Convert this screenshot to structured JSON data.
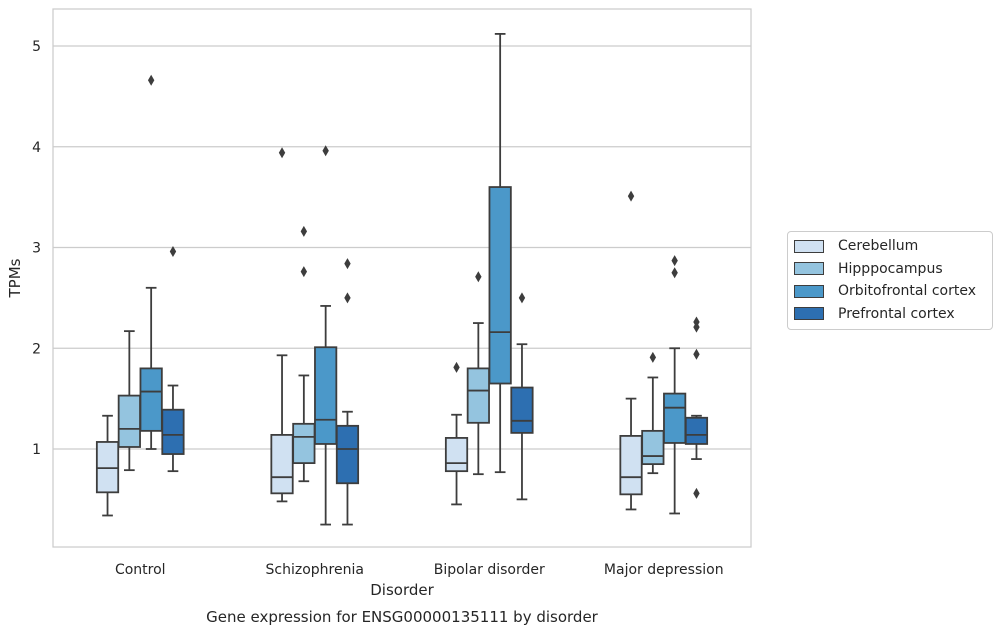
{
  "chart_data": {
    "type": "box",
    "title": "Gene expression for ENSG00000135111 by disorder",
    "xlabel": "Disorder",
    "ylabel": "TPMs",
    "ylim": [
      0,
      5.35
    ],
    "yticks": [
      1,
      2,
      3,
      4,
      5
    ],
    "grid": "horizontal",
    "legend_position": "right",
    "categories": [
      "Control",
      "Schizophrenia",
      "Bipolar disorder",
      "Major depression"
    ],
    "series": [
      {
        "name": "Cerebellum",
        "color": "#d0e1f2",
        "boxes": [
          {
            "whislo": 0.34,
            "q1": 0.57,
            "med": 0.81,
            "q3": 1.07,
            "whishi": 1.33,
            "fliers": []
          },
          {
            "whislo": 0.48,
            "q1": 0.56,
            "med": 0.72,
            "q3": 1.14,
            "whishi": 1.93,
            "fliers": [
              3.94
            ]
          },
          {
            "whislo": 0.45,
            "q1": 0.78,
            "med": 0.86,
            "q3": 1.11,
            "whishi": 1.34,
            "fliers": [
              1.81
            ]
          },
          {
            "whislo": 0.4,
            "q1": 0.55,
            "med": 0.72,
            "q3": 1.13,
            "whishi": 1.5,
            "fliers": [
              3.51
            ]
          }
        ]
      },
      {
        "name": "Hipppocampus",
        "color": "#94c4df",
        "boxes": [
          {
            "whislo": 0.79,
            "q1": 1.02,
            "med": 1.2,
            "q3": 1.53,
            "whishi": 2.17,
            "fliers": []
          },
          {
            "whislo": 0.68,
            "q1": 0.86,
            "med": 1.12,
            "q3": 1.25,
            "whishi": 1.73,
            "fliers": [
              3.16,
              2.76
            ]
          },
          {
            "whislo": 0.75,
            "q1": 1.26,
            "med": 1.58,
            "q3": 1.8,
            "whishi": 2.25,
            "fliers": [
              2.71
            ]
          },
          {
            "whislo": 0.76,
            "q1": 0.85,
            "med": 0.93,
            "q3": 1.18,
            "whishi": 1.71,
            "fliers": [
              1.91
            ]
          }
        ]
      },
      {
        "name": "Orbitofrontal cortex",
        "color": "#4b98c9",
        "boxes": [
          {
            "whislo": 1.0,
            "q1": 1.18,
            "med": 1.57,
            "q3": 1.8,
            "whishi": 2.6,
            "fliers": [
              4.66
            ]
          },
          {
            "whislo": 0.25,
            "q1": 1.05,
            "med": 1.29,
            "q3": 2.01,
            "whishi": 2.42,
            "fliers": [
              3.96
            ]
          },
          {
            "whislo": 0.77,
            "q1": 1.65,
            "med": 2.16,
            "q3": 3.6,
            "whishi": 5.12,
            "fliers": []
          },
          {
            "whislo": 0.36,
            "q1": 1.06,
            "med": 1.41,
            "q3": 1.55,
            "whishi": 2.0,
            "fliers": [
              2.87,
              2.75
            ]
          }
        ]
      },
      {
        "name": "Prefrontal cortex",
        "color": "#2d6fb1",
        "boxes": [
          {
            "whislo": 0.78,
            "q1": 0.95,
            "med": 1.14,
            "q3": 1.39,
            "whishi": 1.63,
            "fliers": [
              2.96
            ]
          },
          {
            "whislo": 0.25,
            "q1": 0.66,
            "med": 1.0,
            "q3": 1.23,
            "whishi": 1.37,
            "fliers": [
              2.84,
              2.5
            ]
          },
          {
            "whislo": 0.5,
            "q1": 1.16,
            "med": 1.28,
            "q3": 1.61,
            "whishi": 2.04,
            "fliers": [
              2.5
            ]
          },
          {
            "whislo": 0.9,
            "q1": 1.05,
            "med": 1.14,
            "q3": 1.31,
            "whishi": 1.33,
            "fliers": [
              2.26,
              2.21,
              1.94,
              0.56
            ]
          }
        ]
      }
    ]
  }
}
